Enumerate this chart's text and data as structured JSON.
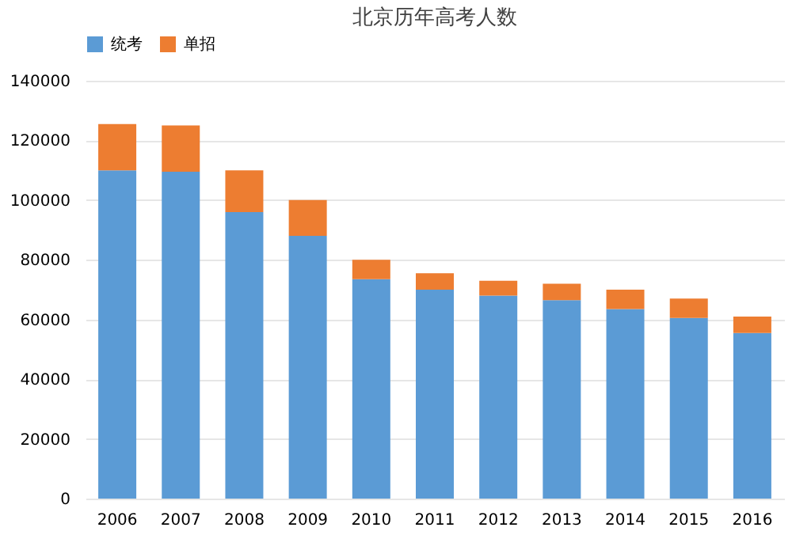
{
  "chart_data": {
    "type": "bar",
    "title": "北京历年高考人数",
    "stacked": true,
    "categories": [
      "2006",
      "2007",
      "2008",
      "2009",
      "2010",
      "2011",
      "2012",
      "2013",
      "2014",
      "2015",
      "2016"
    ],
    "series": [
      {
        "name": "统考",
        "color": "#5b9bd5",
        "values": [
          110000,
          109500,
          96000,
          88000,
          73500,
          70000,
          68000,
          66500,
          63500,
          60500,
          55500
        ]
      },
      {
        "name": "单招",
        "color": "#ed7d31",
        "values": [
          15500,
          15500,
          14000,
          12000,
          6500,
          5500,
          5000,
          5500,
          6500,
          6500,
          5500
        ]
      }
    ],
    "ylim": [
      0,
      140000
    ],
    "yticks": [
      0,
      20000,
      40000,
      60000,
      80000,
      100000,
      120000,
      140000
    ],
    "grid": "y",
    "legend": "top"
  }
}
